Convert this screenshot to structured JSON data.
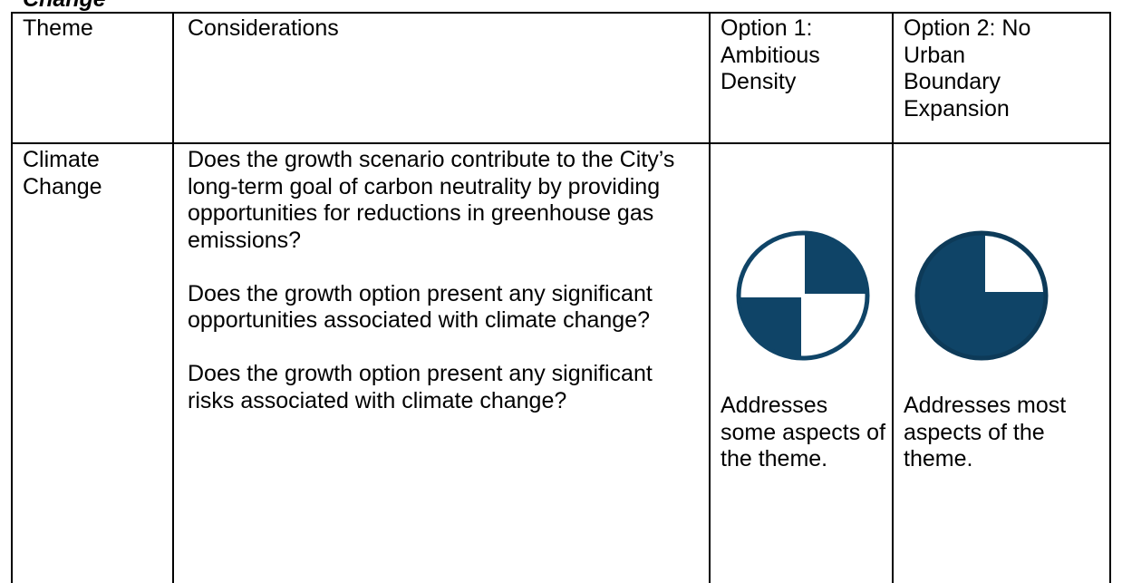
{
  "heading_fragment": "Change",
  "table": {
    "header": [
      "Theme",
      "Considerations",
      "Option 1: Ambitious Density",
      "Option 2: No Urban Boundary Expansion"
    ],
    "rows": [
      [
        "Climate Change",
        [
          "Does the growth scenario contribute to the City’s long-term goal of carbon neutrality by providing opportunities for reductions in greenhouse gas emissions?",
          "Does the growth option present any significant opportunities associated with climate change?",
          "Does the growth option present any significant risks associated with climate change?"
        ],
        "Addresses some aspects of the theme.",
        "Addresses most aspects of the theme."
      ]
    ]
  }
}
